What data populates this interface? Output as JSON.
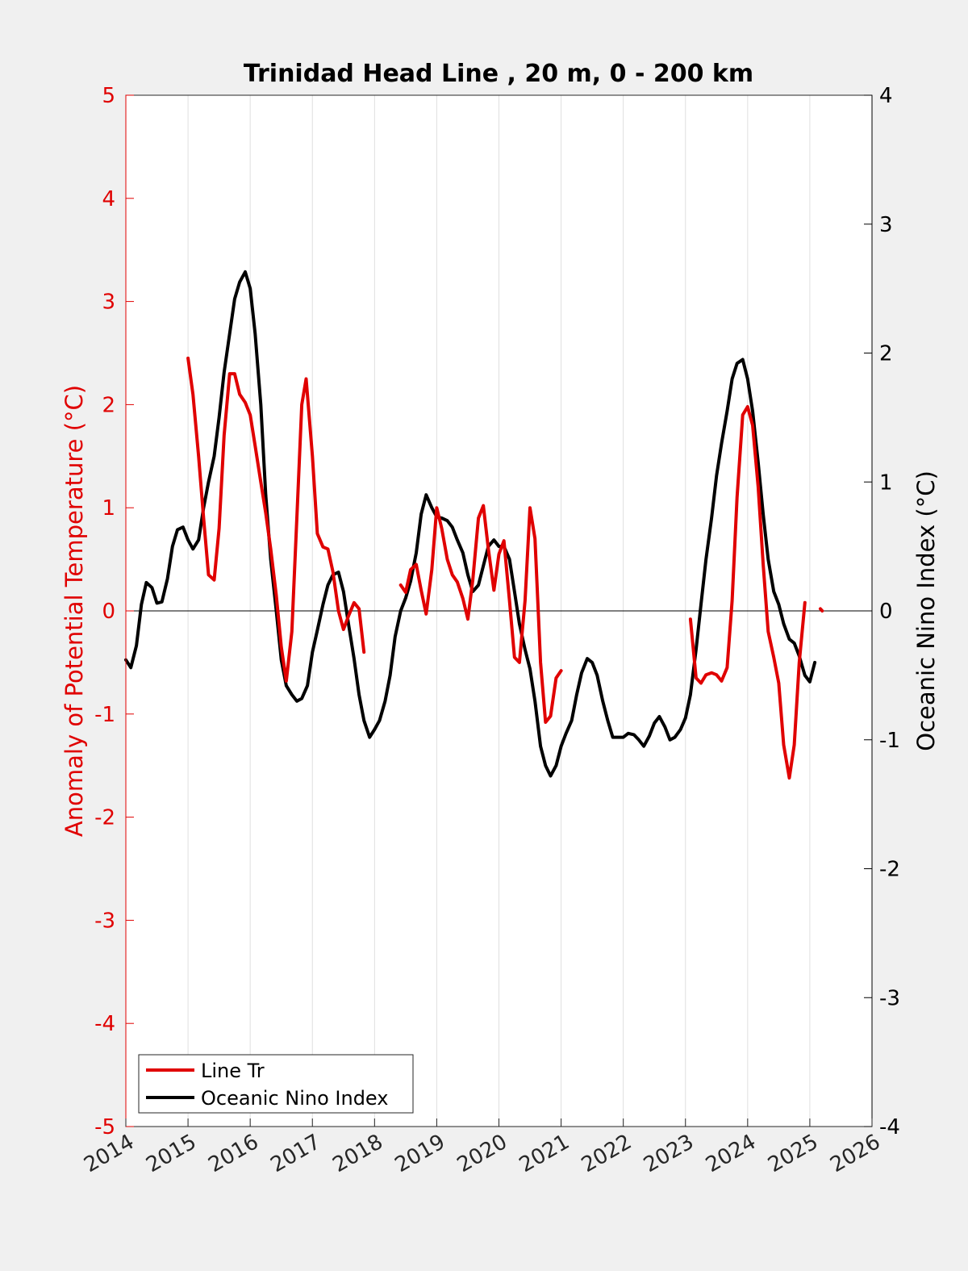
{
  "chart_data": {
    "type": "line",
    "title": "Trinidad Head Line , 20 m, 0 - 200 km",
    "xlabel": "",
    "x_tick_labels": [
      "2014",
      "2015",
      "2016",
      "2017",
      "2018",
      "2019",
      "2020",
      "2021",
      "2022",
      "2023",
      "2024",
      "2025",
      "2026"
    ],
    "xlim": [
      2014,
      2026
    ],
    "left_axis": {
      "label": "Anomaly of Potential Temperature (°C)",
      "ylim": [
        -5,
        5
      ],
      "ticks": [
        5,
        4,
        3,
        2,
        1,
        0,
        -1,
        -2,
        -3,
        -4,
        -5
      ],
      "tick_labels": [
        "5",
        "4",
        "3",
        "2",
        "1",
        "0",
        "-1",
        "-2",
        "-3",
        "-4",
        "-5"
      ],
      "color": "#e00000"
    },
    "right_axis": {
      "label": "Oceanic Nino Index (°C)",
      "ylim": [
        -4,
        4
      ],
      "ticks": [
        4,
        3,
        2,
        1,
        0,
        -1,
        -2,
        -3,
        -4
      ],
      "tick_labels": [
        "4",
        "3",
        "2",
        "1",
        "0",
        "-1",
        "-2",
        "-3",
        "-4"
      ],
      "color": "#000000"
    },
    "grid": "vertical",
    "legend_position": "bottom-left",
    "series": [
      {
        "name": "Line Tr",
        "axis": "left",
        "color": "#e00000",
        "segments": [
          [
            [
              2015.0,
              2.45
            ],
            [
              2015.08,
              2.1
            ],
            [
              2015.17,
              1.5
            ],
            [
              2015.25,
              0.9
            ],
            [
              2015.33,
              0.35
            ],
            [
              2015.42,
              0.3
            ],
            [
              2015.5,
              0.8
            ],
            [
              2015.58,
              1.7
            ],
            [
              2015.67,
              2.3
            ],
            [
              2015.75,
              2.3
            ],
            [
              2015.83,
              2.1
            ],
            [
              2015.92,
              2.02
            ],
            [
              2016.0,
              1.9
            ],
            [
              2016.08,
              1.6
            ],
            [
              2016.17,
              1.25
            ],
            [
              2016.25,
              0.95
            ],
            [
              2016.33,
              0.6
            ],
            [
              2016.42,
              0.15
            ],
            [
              2016.5,
              -0.35
            ],
            [
              2016.58,
              -0.68
            ],
            [
              2016.67,
              -0.2
            ],
            [
              2016.75,
              0.9
            ],
            [
              2016.83,
              2.0
            ],
            [
              2016.9,
              2.25
            ],
            [
              2017.0,
              1.5
            ],
            [
              2017.08,
              0.75
            ],
            [
              2017.17,
              0.62
            ],
            [
              2017.25,
              0.6
            ],
            [
              2017.33,
              0.38
            ],
            [
              2017.42,
              0.0
            ],
            [
              2017.5,
              -0.18
            ],
            [
              2017.58,
              -0.05
            ],
            [
              2017.67,
              0.08
            ],
            [
              2017.75,
              0.02
            ],
            [
              2017.83,
              -0.4
            ]
          ],
          [
            [
              2018.42,
              0.25
            ],
            [
              2018.5,
              0.18
            ],
            [
              2018.58,
              0.4
            ],
            [
              2018.67,
              0.45
            ],
            [
              2018.75,
              0.2
            ],
            [
              2018.83,
              -0.03
            ],
            [
              2018.92,
              0.4
            ],
            [
              2019.0,
              1.0
            ],
            [
              2019.08,
              0.8
            ],
            [
              2019.17,
              0.5
            ],
            [
              2019.25,
              0.35
            ],
            [
              2019.33,
              0.28
            ],
            [
              2019.42,
              0.12
            ],
            [
              2019.5,
              -0.08
            ],
            [
              2019.58,
              0.3
            ],
            [
              2019.67,
              0.9
            ],
            [
              2019.75,
              1.02
            ],
            [
              2019.83,
              0.6
            ],
            [
              2019.92,
              0.2
            ],
            [
              2020.0,
              0.55
            ],
            [
              2020.08,
              0.68
            ],
            [
              2020.17,
              0.1
            ],
            [
              2020.25,
              -0.45
            ],
            [
              2020.33,
              -0.5
            ],
            [
              2020.42,
              0.1
            ],
            [
              2020.5,
              1.0
            ],
            [
              2020.58,
              0.7
            ],
            [
              2020.67,
              -0.5
            ],
            [
              2020.75,
              -1.08
            ],
            [
              2020.83,
              -1.02
            ],
            [
              2020.92,
              -0.65
            ],
            [
              2021.0,
              -0.58
            ]
          ],
          [
            [
              2023.08,
              -0.08
            ],
            [
              2023.17,
              -0.65
            ],
            [
              2023.25,
              -0.7
            ],
            [
              2023.33,
              -0.62
            ],
            [
              2023.42,
              -0.6
            ],
            [
              2023.5,
              -0.62
            ],
            [
              2023.58,
              -0.68
            ],
            [
              2023.67,
              -0.55
            ],
            [
              2023.75,
              0.1
            ],
            [
              2023.83,
              1.1
            ],
            [
              2023.92,
              1.9
            ],
            [
              2024.0,
              1.98
            ],
            [
              2024.08,
              1.8
            ],
            [
              2024.17,
              1.2
            ],
            [
              2024.25,
              0.45
            ],
            [
              2024.33,
              -0.2
            ],
            [
              2024.42,
              -0.45
            ],
            [
              2024.5,
              -0.7
            ],
            [
              2024.58,
              -1.3
            ],
            [
              2024.67,
              -1.62
            ],
            [
              2024.75,
              -1.3
            ],
            [
              2024.83,
              -0.5
            ],
            [
              2024.92,
              0.08
            ]
          ],
          [
            [
              2025.17,
              0.02
            ],
            [
              2025.2,
              0.0
            ]
          ]
        ]
      },
      {
        "name": "Oceanic Nino Index",
        "axis": "right",
        "color": "#000000",
        "segments": [
          [
            [
              2014.0,
              -0.38
            ],
            [
              2014.08,
              -0.44
            ],
            [
              2014.17,
              -0.27
            ],
            [
              2014.25,
              0.05
            ],
            [
              2014.33,
              0.22
            ],
            [
              2014.42,
              0.18
            ],
            [
              2014.5,
              0.06
            ],
            [
              2014.58,
              0.07
            ],
            [
              2014.67,
              0.25
            ],
            [
              2014.75,
              0.5
            ],
            [
              2014.83,
              0.63
            ],
            [
              2014.92,
              0.65
            ],
            [
              2015.0,
              0.55
            ],
            [
              2015.08,
              0.48
            ],
            [
              2015.17,
              0.55
            ],
            [
              2015.25,
              0.8
            ],
            [
              2015.33,
              1.0
            ],
            [
              2015.42,
              1.2
            ],
            [
              2015.5,
              1.5
            ],
            [
              2015.58,
              1.85
            ],
            [
              2015.67,
              2.15
            ],
            [
              2015.75,
              2.42
            ],
            [
              2015.83,
              2.55
            ],
            [
              2015.92,
              2.63
            ],
            [
              2016.0,
              2.5
            ],
            [
              2016.08,
              2.15
            ],
            [
              2016.17,
              1.6
            ],
            [
              2016.25,
              0.9
            ],
            [
              2016.33,
              0.4
            ],
            [
              2016.42,
              0.0
            ],
            [
              2016.5,
              -0.38
            ],
            [
              2016.58,
              -0.58
            ],
            [
              2016.67,
              -0.65
            ],
            [
              2016.75,
              -0.7
            ],
            [
              2016.83,
              -0.68
            ],
            [
              2016.92,
              -0.58
            ],
            [
              2017.0,
              -0.32
            ],
            [
              2017.08,
              -0.15
            ],
            [
              2017.17,
              0.05
            ],
            [
              2017.25,
              0.2
            ],
            [
              2017.33,
              0.28
            ],
            [
              2017.42,
              0.3
            ],
            [
              2017.5,
              0.15
            ],
            [
              2017.58,
              -0.1
            ],
            [
              2017.67,
              -0.37
            ],
            [
              2017.75,
              -0.65
            ],
            [
              2017.83,
              -0.85
            ],
            [
              2017.92,
              -0.98
            ],
            [
              2018.0,
              -0.92
            ],
            [
              2018.08,
              -0.85
            ],
            [
              2018.17,
              -0.7
            ],
            [
              2018.25,
              -0.5
            ],
            [
              2018.33,
              -0.2
            ],
            [
              2018.42,
              0.0
            ],
            [
              2018.5,
              0.1
            ],
            [
              2018.58,
              0.23
            ],
            [
              2018.67,
              0.45
            ],
            [
              2018.75,
              0.75
            ],
            [
              2018.83,
              0.9
            ],
            [
              2018.92,
              0.8
            ],
            [
              2019.0,
              0.73
            ],
            [
              2019.08,
              0.72
            ],
            [
              2019.17,
              0.7
            ],
            [
              2019.25,
              0.65
            ],
            [
              2019.33,
              0.55
            ],
            [
              2019.42,
              0.45
            ],
            [
              2019.5,
              0.28
            ],
            [
              2019.58,
              0.15
            ],
            [
              2019.67,
              0.2
            ],
            [
              2019.75,
              0.35
            ],
            [
              2019.83,
              0.5
            ],
            [
              2019.92,
              0.55
            ],
            [
              2020.0,
              0.5
            ],
            [
              2020.08,
              0.5
            ],
            [
              2020.17,
              0.4
            ],
            [
              2020.25,
              0.15
            ],
            [
              2020.33,
              -0.1
            ],
            [
              2020.42,
              -0.3
            ],
            [
              2020.5,
              -0.45
            ],
            [
              2020.58,
              -0.7
            ],
            [
              2020.67,
              -1.05
            ],
            [
              2020.75,
              -1.2
            ],
            [
              2020.83,
              -1.28
            ],
            [
              2020.92,
              -1.2
            ],
            [
              2021.0,
              -1.05
            ],
            [
              2021.08,
              -0.95
            ],
            [
              2021.17,
              -0.85
            ],
            [
              2021.25,
              -0.65
            ],
            [
              2021.33,
              -0.48
            ],
            [
              2021.42,
              -0.37
            ],
            [
              2021.5,
              -0.4
            ],
            [
              2021.58,
              -0.5
            ],
            [
              2021.67,
              -0.7
            ],
            [
              2021.75,
              -0.85
            ],
            [
              2021.83,
              -0.98
            ],
            [
              2021.92,
              -0.98
            ],
            [
              2022.0,
              -0.98
            ],
            [
              2022.08,
              -0.95
            ],
            [
              2022.17,
              -0.96
            ],
            [
              2022.25,
              -1.0
            ],
            [
              2022.33,
              -1.05
            ],
            [
              2022.42,
              -0.97
            ],
            [
              2022.5,
              -0.87
            ],
            [
              2022.58,
              -0.82
            ],
            [
              2022.67,
              -0.9
            ],
            [
              2022.75,
              -1.0
            ],
            [
              2022.83,
              -0.98
            ],
            [
              2022.92,
              -0.92
            ],
            [
              2023.0,
              -0.83
            ],
            [
              2023.08,
              -0.65
            ],
            [
              2023.17,
              -0.3
            ],
            [
              2023.25,
              0.05
            ],
            [
              2023.33,
              0.4
            ],
            [
              2023.42,
              0.72
            ],
            [
              2023.5,
              1.05
            ],
            [
              2023.58,
              1.3
            ],
            [
              2023.67,
              1.55
            ],
            [
              2023.75,
              1.8
            ],
            [
              2023.83,
              1.92
            ],
            [
              2023.92,
              1.95
            ],
            [
              2024.0,
              1.8
            ],
            [
              2024.08,
              1.55
            ],
            [
              2024.17,
              1.15
            ],
            [
              2024.25,
              0.75
            ],
            [
              2024.33,
              0.4
            ],
            [
              2024.42,
              0.15
            ],
            [
              2024.5,
              0.05
            ],
            [
              2024.58,
              -0.1
            ],
            [
              2024.67,
              -0.22
            ],
            [
              2024.75,
              -0.25
            ],
            [
              2024.83,
              -0.35
            ],
            [
              2024.92,
              -0.5
            ],
            [
              2025.0,
              -0.55
            ],
            [
              2025.08,
              -0.4
            ]
          ]
        ]
      }
    ]
  }
}
